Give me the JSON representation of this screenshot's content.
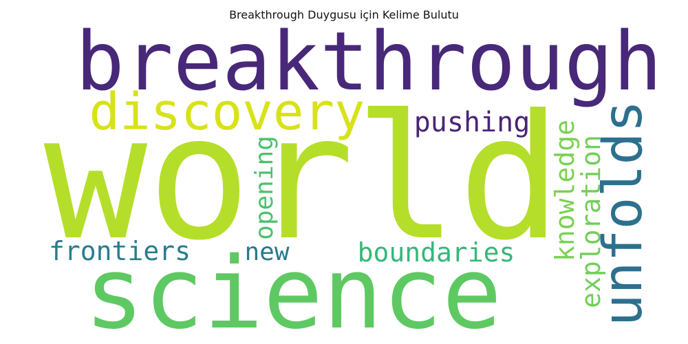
{
  "title": "Breakthrough Duygusu için Kelime Bulutu",
  "cloud": {
    "words": [
      {
        "id": "breakthrough",
        "text": "breakthrough",
        "color": "#482878"
      },
      {
        "id": "discovery",
        "text": "discovery",
        "color": "#d7e219"
      },
      {
        "id": "world",
        "text": "world",
        "color": "#b5de2b"
      },
      {
        "id": "pushing",
        "text": "pushing",
        "color": "#482575"
      },
      {
        "id": "unfolds",
        "text": "unfolds",
        "color": "#2d708e"
      },
      {
        "id": "knowledge",
        "text": "knowledge",
        "color": "#7ad151"
      },
      {
        "id": "exploration",
        "text": "exploration",
        "color": "#70cf57"
      },
      {
        "id": "opening",
        "text": "opening",
        "color": "#4ac16d"
      },
      {
        "id": "frontiers",
        "text": "frontiers",
        "color": "#287c8e"
      },
      {
        "id": "new",
        "text": "new",
        "color": "#2a788e"
      },
      {
        "id": "boundaries",
        "text": "boundaries",
        "color": "#35b779"
      },
      {
        "id": "science",
        "text": "science",
        "color": "#5ec962"
      }
    ]
  }
}
